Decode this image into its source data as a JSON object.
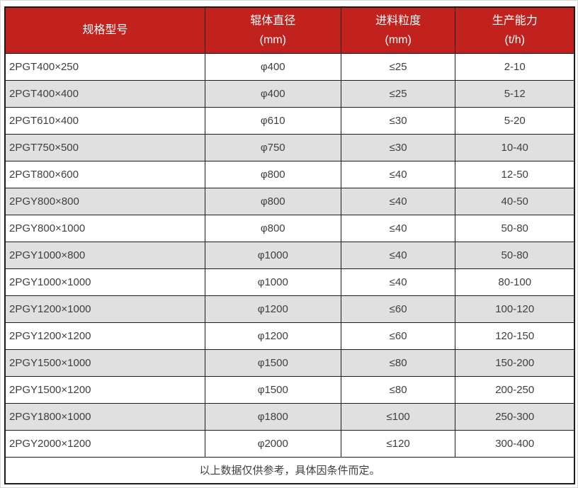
{
  "table": {
    "columns": [
      {
        "label": "规格型号",
        "sub": ""
      },
      {
        "label": "辊体直径",
        "sub": "(mm)"
      },
      {
        "label": "进料粒度",
        "sub": "(mm)"
      },
      {
        "label": "生产能力",
        "sub": "(t/h)"
      }
    ],
    "rows": [
      [
        "2PGT400×250",
        "φ400",
        "≤25",
        "2-10"
      ],
      [
        "2PGT400×400",
        "φ400",
        "≤25",
        "5-12"
      ],
      [
        "2PGT610×400",
        "φ610",
        "≤30",
        "5-20"
      ],
      [
        "2PGT750×500",
        "φ750",
        "≤30",
        "10-40"
      ],
      [
        "2PGT800×600",
        "φ800",
        "≤40",
        "12-50"
      ],
      [
        "2PGY800×800",
        "φ800",
        "≤40",
        "40-50"
      ],
      [
        "2PGY800×1000",
        "φ800",
        "≤40",
        "50-80"
      ],
      [
        "2PGY1000×800",
        "φ1000",
        "≤40",
        "50-80"
      ],
      [
        "2PGY1000×1000",
        "φ1000",
        "≤40",
        "80-100"
      ],
      [
        "2PGY1200×1000",
        "φ1200",
        "≤60",
        "100-120"
      ],
      [
        "2PGY1200×1200",
        "φ1200",
        "≤60",
        "120-150"
      ],
      [
        "2PGY1500×1000",
        "φ1500",
        "≤80",
        "150-200"
      ],
      [
        "2PGY1500×1200",
        "φ1500",
        "≤80",
        "200-250"
      ],
      [
        "2PGY1800×1000",
        "φ1800",
        "≤100",
        "250-300"
      ],
      [
        "2PGY2000×1200",
        "φ2000",
        "≤120",
        "300-400"
      ]
    ],
    "note": "以上数据仅供参考，具体因条件而定。"
  },
  "colors": {
    "header_bg": "#c1221d",
    "header_text": "#ffffff",
    "row_alt": "#e0e0e0",
    "row_bg": "#ffffff",
    "border": "#1b1b1b",
    "text": "#3f3f3f"
  }
}
